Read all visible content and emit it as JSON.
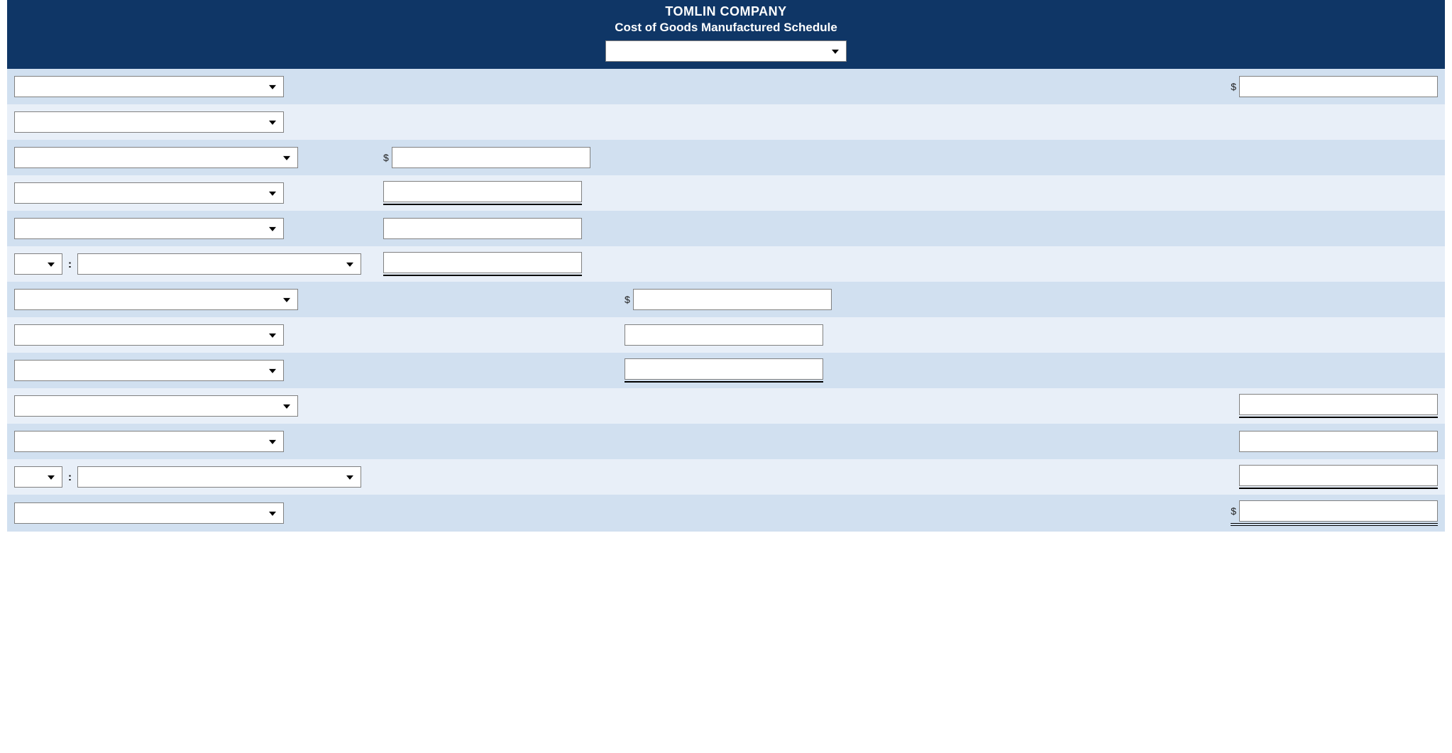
{
  "header": {
    "company": "TOMLIN COMPANY",
    "subtitle": "Cost of Goods Manufactured Schedule",
    "period_select_value": ""
  },
  "currency_symbol": "$",
  "colon": ":",
  "colors": {
    "header_bg": "#0f3666",
    "header_text": "#ffffff",
    "row_odd": "#d1e0f0",
    "row_even": "#e8eff8",
    "input_bg": "#ffffff",
    "input_border": "#808080"
  },
  "rows": [
    {
      "id": "r1",
      "label_selects": [
        ""
      ],
      "col_a": null,
      "col_b": null,
      "col_c": {
        "currency": true,
        "value": "",
        "underline": "none"
      }
    },
    {
      "id": "r2",
      "label_selects": [
        ""
      ],
      "col_a": null,
      "col_b": null,
      "col_c": null
    },
    {
      "id": "r3",
      "label_selects": [
        ""
      ],
      "col_a": {
        "currency": true,
        "value": "",
        "underline": "none"
      },
      "col_b": null,
      "col_c": null
    },
    {
      "id": "r4",
      "label_selects": [
        ""
      ],
      "col_a": {
        "currency": false,
        "value": "",
        "underline": "single"
      },
      "col_b": null,
      "col_c": null
    },
    {
      "id": "r5",
      "label_selects": [
        ""
      ],
      "col_a": {
        "currency": false,
        "value": "",
        "underline": "none"
      },
      "col_b": null,
      "col_c": null
    },
    {
      "id": "r6",
      "label_selects": [
        "",
        ""
      ],
      "label_colon": true,
      "col_a": {
        "currency": false,
        "value": "",
        "underline": "single"
      },
      "col_b": null,
      "col_c": null
    },
    {
      "id": "r7",
      "label_selects": [
        ""
      ],
      "col_a": null,
      "col_b": {
        "currency": true,
        "value": "",
        "underline": "none"
      },
      "col_c": null
    },
    {
      "id": "r8",
      "label_selects": [
        ""
      ],
      "col_a": null,
      "col_b": {
        "currency": false,
        "value": "",
        "underline": "none"
      },
      "col_c": null
    },
    {
      "id": "r9",
      "label_selects": [
        ""
      ],
      "col_a": null,
      "col_b": {
        "currency": false,
        "value": "",
        "underline": "single"
      },
      "col_c": null
    },
    {
      "id": "r10",
      "label_selects": [
        ""
      ],
      "col_a": null,
      "col_b": null,
      "col_c": {
        "currency": false,
        "value": "",
        "underline": "single"
      }
    },
    {
      "id": "r11",
      "label_selects": [
        ""
      ],
      "col_a": null,
      "col_b": null,
      "col_c": {
        "currency": false,
        "value": "",
        "underline": "none"
      }
    },
    {
      "id": "r12",
      "label_selects": [
        "",
        ""
      ],
      "label_colon": true,
      "col_a": null,
      "col_b": null,
      "col_c": {
        "currency": false,
        "value": "",
        "underline": "single"
      }
    },
    {
      "id": "r13",
      "label_selects": [
        ""
      ],
      "col_a": null,
      "col_b": null,
      "col_c": {
        "currency": true,
        "value": "",
        "underline": "double"
      }
    }
  ]
}
